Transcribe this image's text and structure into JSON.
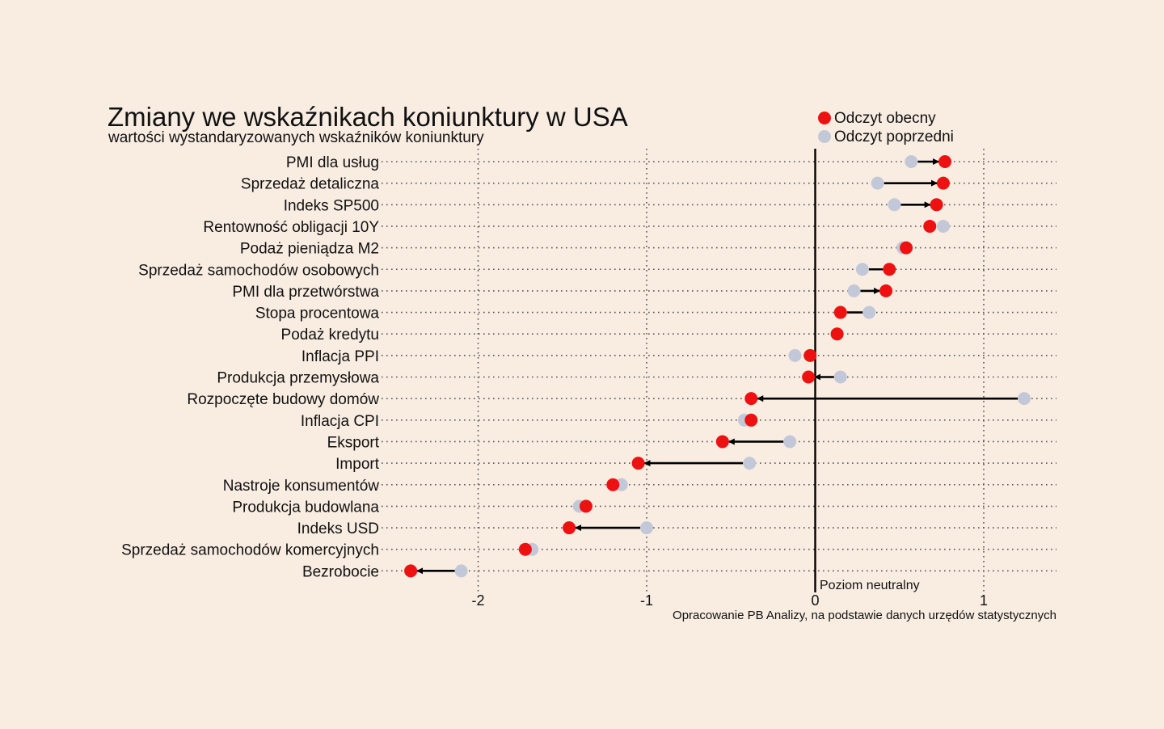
{
  "chart_data": {
    "type": "dumbbell",
    "title": "Zmiany we wskaźnikach koniunktury w USA",
    "subtitle": "wartości wystandaryzowanych wskaźników koniunktury",
    "legend": {
      "placement": "top-right",
      "items": [
        {
          "label": "Odczyt obecny",
          "color": "#ee1111"
        },
        {
          "label": "Odczyt poprzedni",
          "color": "#c3c8d8"
        }
      ]
    },
    "neutral_label": "Poziom neutralny",
    "source": "Opracowanie PB Analizy, na podstawie danych urzędów statystycznych",
    "x_ticks": [
      -2,
      -1,
      0,
      1
    ],
    "x_tick_labels": [
      "-2",
      "-1",
      "0",
      "1"
    ],
    "xlim": [
      -2.65,
      1.45
    ],
    "grid": "dotted",
    "categories": [
      "PMI dla usług",
      "Sprzedaż detaliczna",
      "Indeks SP500",
      "Rentowność obligacji 10Y",
      "Podaż pieniądza M2",
      "Sprzedaż samochodów osobowych",
      "PMI dla przetwórstwa",
      "Stopa procentowa",
      "Podaż kredytu",
      "Inflacja PPI",
      "Produkcja przemysłowa",
      "Rozpoczęte budowy domów",
      "Inflacja CPI",
      "Eksport",
      "Import",
      "Nastroje konsumentów",
      "Produkcja budowlana",
      "Indeks USD",
      "Sprzedaż samochodów komercyjnych",
      "Bezrobocie"
    ],
    "series": [
      {
        "name": "Odczyt obecny",
        "color": "#ee1111",
        "values": [
          0.77,
          0.76,
          0.72,
          0.68,
          0.54,
          0.44,
          0.42,
          0.15,
          0.13,
          -0.03,
          -0.04,
          -0.38,
          -0.38,
          -0.55,
          -1.05,
          -1.2,
          -1.36,
          -1.46,
          -1.72,
          -2.4
        ]
      },
      {
        "name": "Odczyt poprzedni",
        "color": "#c3c8d8",
        "values": [
          0.57,
          0.37,
          0.47,
          0.76,
          0.52,
          0.28,
          0.23,
          0.32,
          0.13,
          -0.12,
          0.15,
          1.24,
          -0.42,
          -0.15,
          -0.39,
          -1.15,
          -1.4,
          -1.0,
          -1.68,
          -2.1
        ]
      }
    ]
  }
}
